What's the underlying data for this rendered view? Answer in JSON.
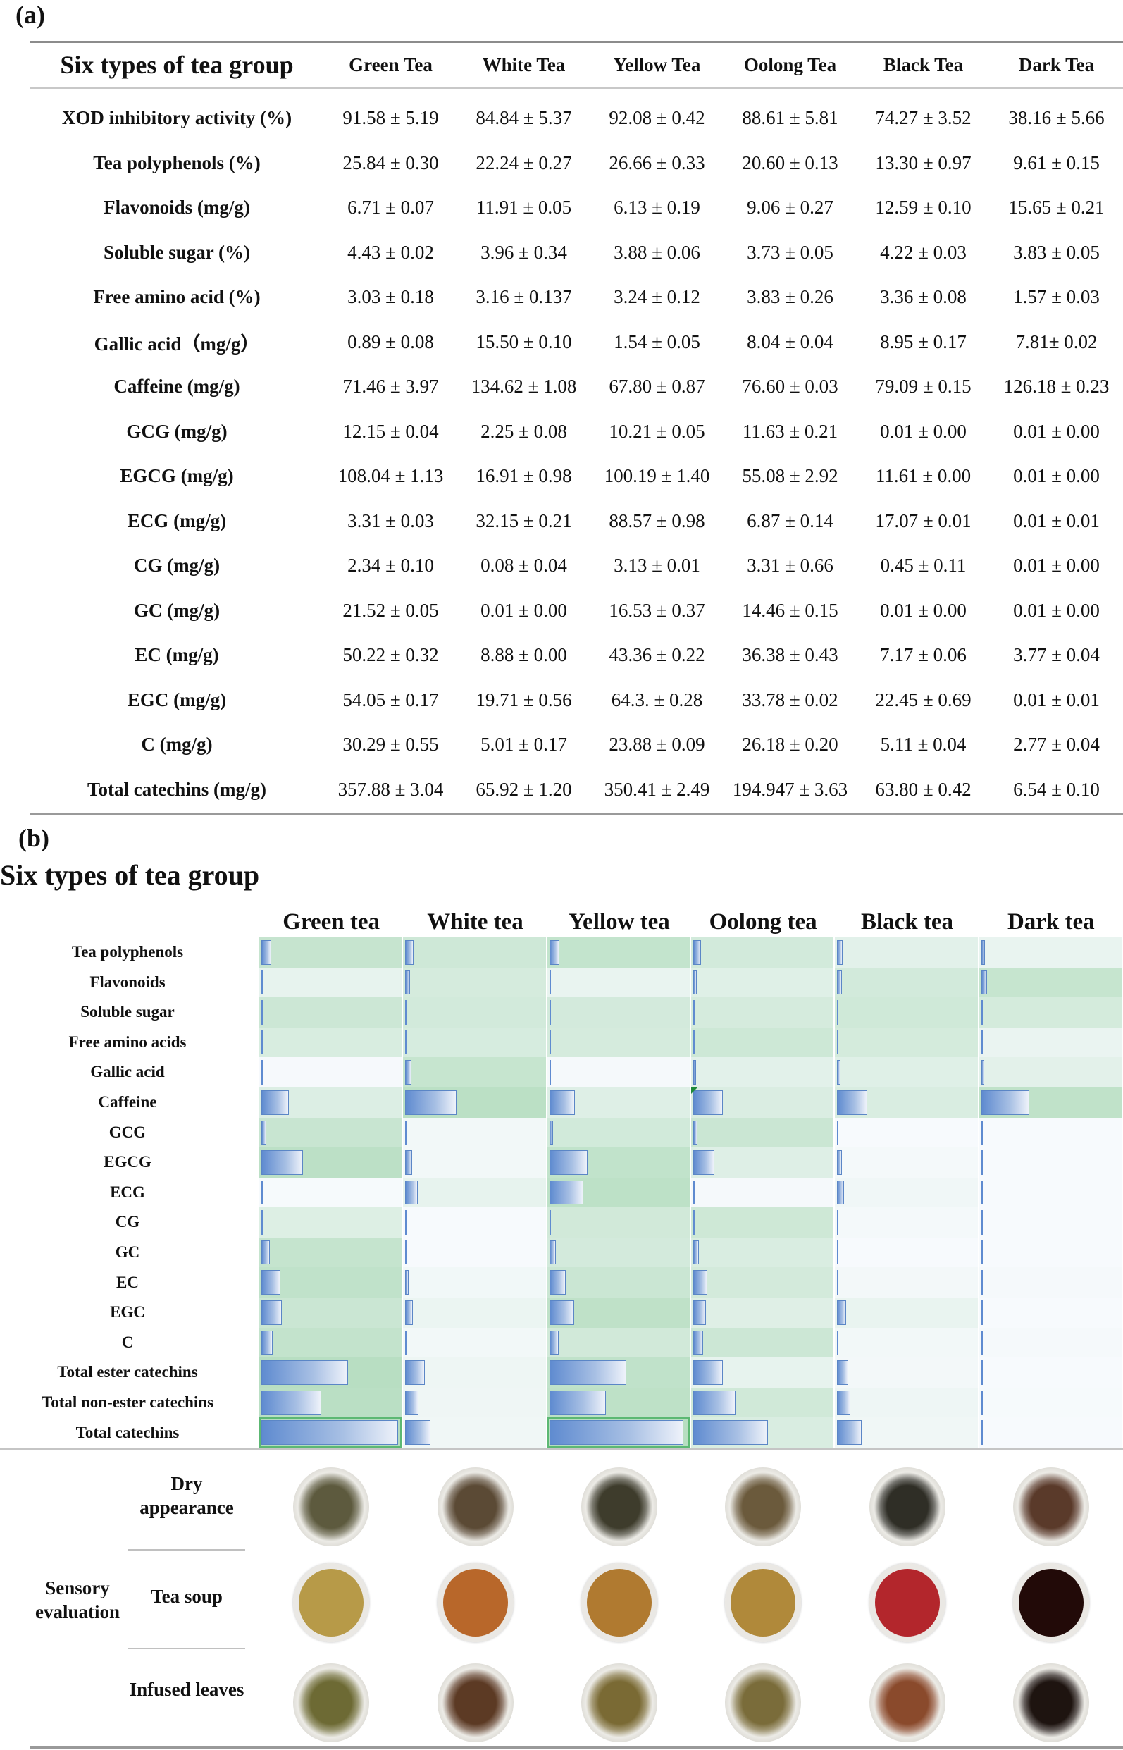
{
  "panel_a": {
    "label": "(a)",
    "header": [
      "Six types of tea group",
      "Green Tea",
      "White Tea",
      "Yellow Tea",
      "Oolong Tea",
      "Black Tea",
      "Dark Tea"
    ],
    "rows": [
      [
        "XOD inhibitory activity (%)",
        "91.58  ±  5.19",
        "84.84 ± 5.37",
        "92.08 ± 0.42",
        "88.61 ± 5.81",
        "74.27 ± 3.52",
        "38.16 ± 5.66"
      ],
      [
        "Tea polyphenols (%)",
        "25.84 ± 0.30",
        "22.24 ± 0.27",
        "26.66 ± 0.33",
        "20.60 ± 0.13",
        "13.30 ± 0.97",
        "9.61 ± 0.15"
      ],
      [
        "Flavonoids (mg/g)",
        "6.71 ± 0.07",
        "11.91 ± 0.05",
        "6.13 ± 0.19",
        "9.06 ± 0.27",
        "12.59 ± 0.10",
        "15.65 ± 0.21"
      ],
      [
        "Soluble sugar (%)",
        "4.43 ± 0.02",
        "3.96 ± 0.34",
        "3.88 ± 0.06",
        "3.73 ± 0.05",
        "4.22 ± 0.03",
        "3.83 ± 0.05"
      ],
      [
        "Free amino acid (%)",
        "3.03 ± 0.18",
        "3.16 ± 0.137",
        "3.24 ± 0.12",
        "3.83 ± 0.26",
        "3.36 ± 0.08",
        "1.57 ± 0.03"
      ],
      [
        "Gallic acid（mg/g）",
        "0.89 ± 0.08",
        "15.50 ± 0.10",
        "1.54 ± 0.05",
        "8.04 ± 0.04",
        "8.95 ± 0.17",
        "7.81± 0.02"
      ],
      [
        "Caffeine (mg/g)",
        "71.46 ± 3.97",
        "134.62 ± 1.08",
        "67.80 ± 0.87",
        "76.60 ± 0.03",
        "79.09 ± 0.15",
        "126.18 ± 0.23"
      ],
      [
        "GCG (mg/g)",
        "12.15 ± 0.04",
        "2.25 ± 0.08",
        "10.21 ± 0.05",
        "11.63 ± 0.21",
        "0.01 ± 0.00",
        "0.01 ± 0.00"
      ],
      [
        "EGCG (mg/g)",
        "108.04 ± 1.13",
        "16.91 ± 0.98",
        "100.19 ± 1.40",
        "55.08 ± 2.92",
        "11.61 ± 0.00",
        "0.01 ± 0.00"
      ],
      [
        "ECG (mg/g)",
        "3.31 ± 0.03",
        "32.15 ± 0.21",
        "88.57 ± 0.98",
        "6.87 ± 0.14",
        "17.07 ± 0.01",
        "0.01 ± 0.01"
      ],
      [
        "CG (mg/g)",
        "2.34 ± 0.10",
        "0.08 ± 0.04",
        "3.13 ± 0.01",
        "3.31 ± 0.66",
        "0.45 ± 0.11",
        "0.01 ± 0.00"
      ],
      [
        "GC (mg/g)",
        "21.52 ± 0.05",
        "0.01 ± 0.00",
        "16.53 ± 0.37",
        "14.46 ± 0.15",
        "0.01 ± 0.00",
        "0.01 ± 0.00"
      ],
      [
        "EC (mg/g)",
        "50.22 ± 0.32",
        "8.88 ± 0.00",
        "43.36 ± 0.22",
        "36.38 ± 0.43",
        "7.17 ± 0.06",
        "3.77 ± 0.04"
      ],
      [
        "EGC (mg/g)",
        "54.05 ± 0.17",
        "19.71 ± 0.56",
        "64.3. ± 0.28",
        "33.78 ± 0.02",
        "22.45 ± 0.69",
        "0.01 ± 0.01"
      ],
      [
        "C (mg/g)",
        "30.29 ± 0.55",
        "5.01 ± 0.17",
        "23.88 ± 0.09",
        "26.18 ± 0.20",
        "5.11 ± 0.04",
        "2.77 ± 0.04"
      ],
      [
        "Total catechins (mg/g)",
        "357.88 ± 3.04",
        "65.92 ± 1.20",
        "350.41 ± 2.49",
        "194.947 ± 3.63",
        "63.80 ± 0.42",
        "6.54 ± 0.10"
      ]
    ]
  },
  "panel_b": {
    "label": "(b)",
    "title": "Six types of tea group",
    "sensory": {
      "group_label": "Sensory evaluation",
      "rows": [
        {
          "label": "Dry appearance",
          "kind": "leaves",
          "colors": [
            "#5d5a3e",
            "#5b4a35",
            "#3e3c2c",
            "#6b5a3c",
            "#2f2e26",
            "#5a3a2a"
          ]
        },
        {
          "label": "Tea soup",
          "kind": "cup",
          "colors": [
            "#b79a48",
            "#b8672a",
            "#b07a30",
            "#b0893a",
            "#b3262c",
            "#220a08"
          ]
        },
        {
          "label": "Infused leaves",
          "kind": "leaves",
          "colors": [
            "#6d6a34",
            "#5c3a24",
            "#7a6a34",
            "#7a6c3a",
            "#8a4a2c",
            "#1e1410"
          ]
        }
      ]
    }
  },
  "chart_data": {
    "type": "heatmap",
    "title": "Six types of tea group",
    "categories": [
      "Green tea",
      "White tea",
      "Yellow tea",
      "Oolong tea",
      "Black tea",
      "Dark tea"
    ],
    "rows": [
      "Tea polyphenols",
      "Flavonoids",
      "Soluble sugar",
      "Free amino acids",
      "Gallic acid",
      "Caffeine",
      "GCG",
      "EGCG",
      "ECG",
      "CG",
      "GC",
      "EC",
      "EGC",
      "C",
      "Total ester catechins",
      "Total non-ester catechins",
      "Total catechins"
    ],
    "encoding": "data bars (blue, relative length) over green color-scale cell background",
    "values": [
      [
        25.84,
        22.24,
        26.66,
        20.6,
        13.3,
        9.61
      ],
      [
        6.71,
        11.91,
        6.13,
        9.06,
        12.59,
        15.65
      ],
      [
        4.43,
        3.96,
        3.88,
        3.73,
        4.22,
        3.83
      ],
      [
        3.03,
        3.16,
        3.24,
        3.83,
        3.36,
        1.57
      ],
      [
        0.89,
        15.5,
        1.54,
        8.04,
        8.95,
        7.81
      ],
      [
        71.46,
        134.62,
        67.8,
        76.6,
        79.09,
        126.18
      ],
      [
        12.15,
        2.25,
        10.21,
        11.63,
        0.01,
        0.01
      ],
      [
        108.04,
        16.91,
        100.19,
        55.08,
        11.61,
        0.01
      ],
      [
        3.31,
        32.15,
        88.57,
        6.87,
        17.07,
        0.01
      ],
      [
        2.34,
        0.08,
        3.13,
        3.31,
        0.45,
        0.01
      ],
      [
        21.52,
        0.01,
        16.53,
        14.46,
        0.01,
        0.01
      ],
      [
        50.22,
        8.88,
        43.36,
        36.38,
        7.17,
        3.77
      ],
      [
        54.05,
        19.71,
        64.3,
        33.78,
        22.45,
        0.01
      ],
      [
        30.29,
        5.01,
        23.88,
        26.18,
        5.11,
        2.77
      ],
      [
        225.7,
        51.31,
        202.1,
        76.89,
        29.13,
        0.04
      ],
      [
        155.88,
        33.61,
        148.07,
        110.8,
        34.74,
        6.56
      ],
      [
        357.88,
        65.92,
        350.41,
        194.947,
        63.8,
        6.54
      ]
    ],
    "bar_scale_max": 357.88,
    "highlighted_cells": [
      [
        16,
        0
      ],
      [
        16,
        2
      ]
    ],
    "flagged_cells": [
      [
        5,
        3
      ]
    ],
    "colors": {
      "bar": "#5f8bd0",
      "bar_border": "#5b86c6",
      "cell_high": "#a9d8b4",
      "cell_low": "#f7fafd",
      "highlight_border": "#5cb873",
      "flag": "#1f8a3a"
    }
  }
}
